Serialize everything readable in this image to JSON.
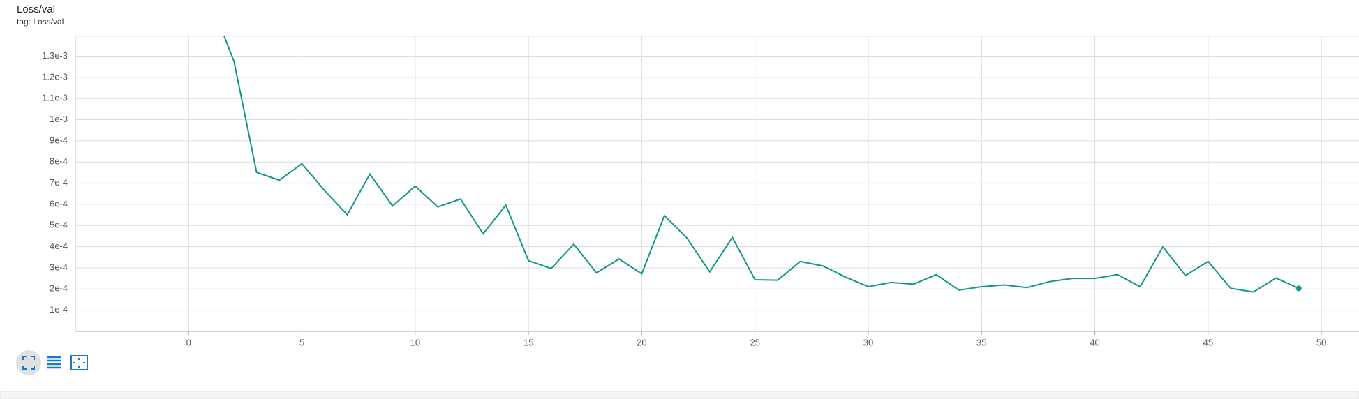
{
  "chart_data": {
    "type": "line",
    "title": "Loss/val",
    "subtitle": "tag: Loss/val",
    "series": [
      {
        "name": "Loss/val",
        "color": "#12968a",
        "x": [
          1,
          2,
          3,
          4,
          5,
          6,
          7,
          8,
          9,
          10,
          11,
          12,
          13,
          14,
          15,
          16,
          17,
          18,
          19,
          20,
          21,
          22,
          23,
          24,
          25,
          26,
          27,
          28,
          29,
          30,
          31,
          32,
          33,
          34,
          35,
          36,
          37,
          38,
          39,
          40,
          41,
          42,
          43,
          44,
          45,
          46,
          47,
          48,
          49
        ],
        "values": [
          0.00155,
          0.001276,
          0.000751,
          0.000714,
          0.000792,
          0.000665,
          0.000551,
          0.000743,
          0.000592,
          0.000686,
          0.000588,
          0.000625,
          0.000461,
          0.000596,
          0.000334,
          0.000297,
          0.000412,
          0.000276,
          0.000342,
          0.000272,
          0.000547,
          0.00044,
          0.000281,
          0.000444,
          0.000244,
          0.000242,
          0.00033,
          0.000309,
          0.000256,
          0.000211,
          0.000231,
          0.000223,
          0.000268,
          0.000195,
          0.000211,
          0.000219,
          0.000207,
          0.000235,
          0.00025,
          0.00025,
          0.000268,
          0.000211,
          0.000399,
          0.000264,
          0.00033,
          0.000203,
          0.000186,
          0.000252,
          0.000203
        ]
      }
    ],
    "xlim": [
      -5,
      51.66
    ],
    "ylim": [
      0,
      0.001394
    ],
    "xticks": [
      0,
      5,
      10,
      15,
      20,
      25,
      30,
      35,
      40,
      45,
      50
    ],
    "yticks": [
      {
        "value": 0.0001,
        "label": "1e-4"
      },
      {
        "value": 0.0002,
        "label": "2e-4"
      },
      {
        "value": 0.0003,
        "label": "3e-4"
      },
      {
        "value": 0.0004,
        "label": "4e-4"
      },
      {
        "value": 0.0005,
        "label": "5e-4"
      },
      {
        "value": 0.0006,
        "label": "6e-4"
      },
      {
        "value": 0.0007,
        "label": "7e-4"
      },
      {
        "value": 0.0008,
        "label": "8e-4"
      },
      {
        "value": 0.0009,
        "label": "9e-4"
      },
      {
        "value": 0.001,
        "label": "1e-3"
      },
      {
        "value": 0.0011,
        "label": "1.1e-3"
      },
      {
        "value": 0.0012,
        "label": "1.2e-3"
      },
      {
        "value": 0.0013,
        "label": "1.3e-3"
      }
    ],
    "grid": true
  }
}
